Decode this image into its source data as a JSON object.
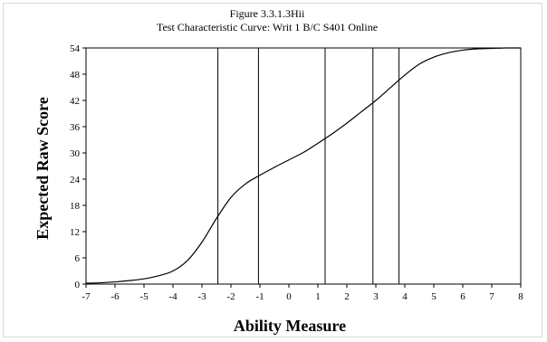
{
  "chart_data": {
    "type": "line",
    "title": "Figure 3.3.1.3Hii",
    "subtitle": "Test Characteristic Curve: Writ 1 B/C S401 Online",
    "xlabel": "Ability Measure",
    "ylabel": "Expected Raw Score",
    "xlim": [
      -7,
      8
    ],
    "ylim": [
      0,
      54
    ],
    "x_ticks": [
      -7,
      -6,
      -5,
      -4,
      -3,
      -2,
      -1,
      0,
      1,
      2,
      3,
      4,
      5,
      6,
      7,
      8
    ],
    "y_ticks": [
      0,
      6,
      12,
      18,
      24,
      30,
      36,
      42,
      48,
      54
    ],
    "grid": false,
    "legend": "none",
    "series": [
      {
        "x": [
          -7,
          -6.5,
          -6,
          -5.5,
          -5,
          -4.5,
          -4,
          -3.5,
          -3,
          -2.5,
          -2,
          -1.5,
          -1,
          -0.5,
          0,
          0.5,
          1,
          1.5,
          2,
          2.5,
          3,
          3.5,
          4,
          4.5,
          5,
          5.5,
          6,
          6.5,
          7,
          7.5,
          8
        ],
        "y": [
          0.2,
          0.3,
          0.5,
          0.8,
          1.2,
          1.9,
          3.0,
          5.4,
          9.6,
          15.0,
          19.8,
          22.9,
          24.9,
          26.7,
          28.4,
          30.1,
          32.2,
          34.4,
          36.8,
          39.4,
          42.0,
          44.9,
          47.8,
          50.3,
          51.9,
          52.9,
          53.5,
          53.8,
          53.9,
          54.0,
          54.0
        ]
      }
    ],
    "vertical_lines": [
      -2.45,
      -1.05,
      1.25,
      2.9,
      3.8
    ]
  }
}
